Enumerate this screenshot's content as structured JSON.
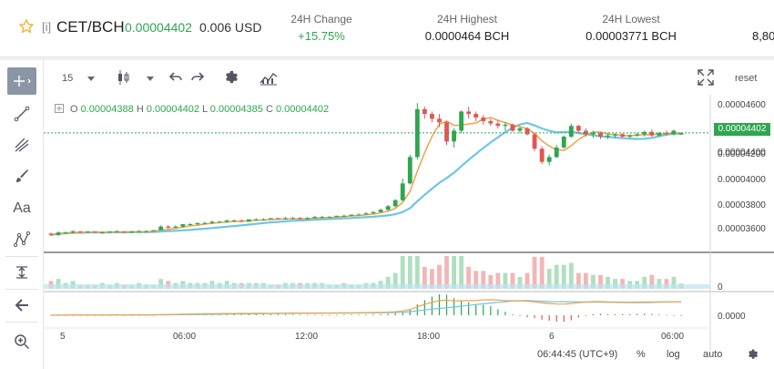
{
  "header": {
    "tag": "[i]",
    "pair": "CET/BCH",
    "price": "0.00004402",
    "usd": "0.006 USD",
    "stats": [
      {
        "label": "24H Change",
        "value": "+15.75%",
        "up": true
      },
      {
        "label": "24H Highest",
        "value": "0.0000464 BCH",
        "up": false
      },
      {
        "label": "24H Lowest",
        "value": "0.00003771 BCH",
        "up": false
      },
      {
        "label": "",
        "value": "8,80",
        "up": false
      }
    ]
  },
  "chart_toolbar": {
    "interval": "15",
    "reset": "reset"
  },
  "ohlc": {
    "o_key": "O",
    "o": "0.00004388",
    "h_key": "H",
    "h": "0.00004402",
    "l_key": "L",
    "l": "0.00004385",
    "c_key": "C",
    "c": "0.00004402"
  },
  "price_axis": [
    "0.00004600",
    "0.00004400",
    "0.00004200",
    "0.00004000",
    "0.00003800",
    "0.00003600"
  ],
  "current_price_tag": "0.00004402",
  "volume_axis_label": "0",
  "macd_axis_label": "0.0000",
  "time_axis": [
    "5",
    "06:00",
    "12:00",
    "18:00",
    "6",
    "06:00"
  ],
  "bottom_bar": {
    "clock": "06:44:45 (UTC+9)",
    "percent": "%",
    "log": "log",
    "auto": "auto"
  },
  "colors": {
    "up": "#2fa650",
    "down": "#e05656",
    "ma_fast": "#f0a24a",
    "ma_slow": "#6ec6e6"
  },
  "chart_data": {
    "type": "candlestick",
    "interval": "15",
    "ylim": [
      3.45e-05,
      4.72e-05
    ],
    "candles": [
      [
        3.56e-05,
        3.57e-05,
        3.54e-05,
        3.55e-05
      ],
      [
        3.55e-05,
        3.58e-05,
        3.54e-05,
        3.57e-05
      ],
      [
        3.57e-05,
        3.58e-05,
        3.56e-05,
        3.57e-05
      ],
      [
        3.57e-05,
        3.59e-05,
        3.56e-05,
        3.58e-05
      ],
      [
        3.58e-05,
        3.58e-05,
        3.57e-05,
        3.57e-05
      ],
      [
        3.57e-05,
        3.58e-05,
        3.57e-05,
        3.58e-05
      ],
      [
        3.58e-05,
        3.58e-05,
        3.57e-05,
        3.57e-05
      ],
      [
        3.57e-05,
        3.58e-05,
        3.56e-05,
        3.57e-05
      ],
      [
        3.57e-05,
        3.58e-05,
        3.57e-05,
        3.58e-05
      ],
      [
        3.58e-05,
        3.59e-05,
        3.57e-05,
        3.58e-05
      ],
      [
        3.58e-05,
        3.58e-05,
        3.57e-05,
        3.57e-05
      ],
      [
        3.57e-05,
        3.58e-05,
        3.57e-05,
        3.58e-05
      ],
      [
        3.58e-05,
        3.59e-05,
        3.57e-05,
        3.58e-05
      ],
      [
        3.58e-05,
        3.59e-05,
        3.58e-05,
        3.58e-05
      ],
      [
        3.58e-05,
        3.59e-05,
        3.58e-05,
        3.59e-05
      ],
      [
        3.59e-05,
        3.63e-05,
        3.59e-05,
        3.62e-05
      ],
      [
        3.62e-05,
        3.63e-05,
        3.6e-05,
        3.61e-05
      ],
      [
        3.61e-05,
        3.63e-05,
        3.61e-05,
        3.62e-05
      ],
      [
        3.62e-05,
        3.64e-05,
        3.61e-05,
        3.64e-05
      ],
      [
        3.64e-05,
        3.65e-05,
        3.63e-05,
        3.64e-05
      ],
      [
        3.64e-05,
        3.65e-05,
        3.63e-05,
        3.65e-05
      ],
      [
        3.65e-05,
        3.66e-05,
        3.64e-05,
        3.65e-05
      ],
      [
        3.65e-05,
        3.67e-05,
        3.64e-05,
        3.66e-05
      ],
      [
        3.66e-05,
        3.67e-05,
        3.65e-05,
        3.66e-05
      ],
      [
        3.66e-05,
        3.68e-05,
        3.65e-05,
        3.67e-05
      ],
      [
        3.67e-05,
        3.68e-05,
        3.66e-05,
        3.67e-05
      ],
      [
        3.67e-05,
        3.68e-05,
        3.66e-05,
        3.66e-05
      ],
      [
        3.66e-05,
        3.68e-05,
        3.66e-05,
        3.68e-05
      ],
      [
        3.68e-05,
        3.69e-05,
        3.67e-05,
        3.68e-05
      ],
      [
        3.68e-05,
        3.69e-05,
        3.67e-05,
        3.68e-05
      ],
      [
        3.68e-05,
        3.69e-05,
        3.68e-05,
        3.69e-05
      ],
      [
        3.69e-05,
        3.69e-05,
        3.68e-05,
        3.68e-05
      ],
      [
        3.68e-05,
        3.7e-05,
        3.68e-05,
        3.69e-05
      ],
      [
        3.69e-05,
        3.7e-05,
        3.68e-05,
        3.69e-05
      ],
      [
        3.69e-05,
        3.7e-05,
        3.68e-05,
        3.68e-05
      ],
      [
        3.68e-05,
        3.7e-05,
        3.68e-05,
        3.69e-05
      ],
      [
        3.69e-05,
        3.71e-05,
        3.69e-05,
        3.7e-05
      ],
      [
        3.7e-05,
        3.71e-05,
        3.69e-05,
        3.7e-05
      ],
      [
        3.7e-05,
        3.71e-05,
        3.7e-05,
        3.7e-05
      ],
      [
        3.7e-05,
        3.71e-05,
        3.7e-05,
        3.71e-05
      ],
      [
        3.71e-05,
        3.72e-05,
        3.7e-05,
        3.71e-05
      ],
      [
        3.71e-05,
        3.72e-05,
        3.71e-05,
        3.72e-05
      ],
      [
        3.72e-05,
        3.73e-05,
        3.72e-05,
        3.72e-05
      ],
      [
        3.72e-05,
        3.74e-05,
        3.72e-05,
        3.73e-05
      ],
      [
        3.73e-05,
        3.75e-05,
        3.73e-05,
        3.74e-05
      ],
      [
        3.74e-05,
        3.77e-05,
        3.74e-05,
        3.76e-05
      ],
      [
        3.76e-05,
        3.8e-05,
        3.75e-05,
        3.79e-05
      ],
      [
        3.79e-05,
        3.85e-05,
        3.78e-05,
        3.84e-05
      ],
      [
        3.84e-05,
        4.02e-05,
        3.83e-05,
        3.98e-05
      ],
      [
        3.98e-05,
        4.22e-05,
        3.97e-05,
        4.2e-05
      ],
      [
        4.2e-05,
        4.65e-05,
        4.18e-05,
        4.6e-05
      ],
      [
        4.6e-05,
        4.62e-05,
        4.52e-05,
        4.56e-05
      ],
      [
        4.56e-05,
        4.58e-05,
        4.49e-05,
        4.52e-05
      ],
      [
        4.52e-05,
        4.56e-05,
        4.45e-05,
        4.49e-05
      ],
      [
        4.49e-05,
        4.5e-05,
        4.3e-05,
        4.33e-05
      ],
      [
        4.33e-05,
        4.44e-05,
        4.28e-05,
        4.42e-05
      ],
      [
        4.42e-05,
        4.59e-05,
        4.4e-05,
        4.58e-05
      ],
      [
        4.58e-05,
        4.62e-05,
        4.52e-05,
        4.56e-05
      ],
      [
        4.56e-05,
        4.58e-05,
        4.5e-05,
        4.53e-05
      ],
      [
        4.53e-05,
        4.55e-05,
        4.47e-05,
        4.5e-05
      ],
      [
        4.5e-05,
        4.52e-05,
        4.46e-05,
        4.48e-05
      ],
      [
        4.48e-05,
        4.51e-05,
        4.44e-05,
        4.46e-05
      ],
      [
        4.46e-05,
        4.49e-05,
        4.42e-05,
        4.47e-05
      ],
      [
        4.47e-05,
        4.48e-05,
        4.41e-05,
        4.42e-05
      ],
      [
        4.42e-05,
        4.45e-05,
        4.4e-05,
        4.44e-05
      ],
      [
        4.44e-05,
        4.45e-05,
        4.38e-05,
        4.39e-05
      ],
      [
        4.39e-05,
        4.4e-05,
        4.25e-05,
        4.27e-05
      ],
      [
        4.27e-05,
        4.29e-05,
        4.14e-05,
        4.16e-05
      ],
      [
        4.16e-05,
        4.22e-05,
        4.13e-05,
        4.2e-05
      ],
      [
        4.2e-05,
        4.3e-05,
        4.19e-05,
        4.28e-05
      ],
      [
        4.28e-05,
        4.38e-05,
        4.27e-05,
        4.37e-05
      ],
      [
        4.37e-05,
        4.48e-05,
        4.36e-05,
        4.46e-05
      ],
      [
        4.46e-05,
        4.47e-05,
        4.4e-05,
        4.42e-05
      ],
      [
        4.42e-05,
        4.44e-05,
        4.37e-05,
        4.39e-05
      ],
      [
        4.39e-05,
        4.42e-05,
        4.36e-05,
        4.4e-05
      ],
      [
        4.4e-05,
        4.41e-05,
        4.35e-05,
        4.37e-05
      ],
      [
        4.37e-05,
        4.4e-05,
        4.35e-05,
        4.38e-05
      ],
      [
        4.38e-05,
        4.4e-05,
        4.36e-05,
        4.39e-05
      ],
      [
        4.39e-05,
        4.4e-05,
        4.36e-05,
        4.37e-05
      ],
      [
        4.37e-05,
        4.39e-05,
        4.36e-05,
        4.38e-05
      ],
      [
        4.38e-05,
        4.4e-05,
        4.37e-05,
        4.39e-05
      ],
      [
        4.39e-05,
        4.42e-05,
        4.37e-05,
        4.41e-05
      ],
      [
        4.41e-05,
        4.43e-05,
        4.37e-05,
        4.38e-05
      ],
      [
        4.38e-05,
        4.41e-05,
        4.37e-05,
        4.4e-05
      ],
      [
        4.4e-05,
        4.42e-05,
        4.38e-05,
        4.39e-05
      ],
      [
        4.39e-05,
        4.43e-05,
        4.38e-05,
        4.42e-05
      ],
      [
        4.388e-05,
        4.402e-05,
        4.385e-05,
        4.402e-05
      ]
    ]
  }
}
